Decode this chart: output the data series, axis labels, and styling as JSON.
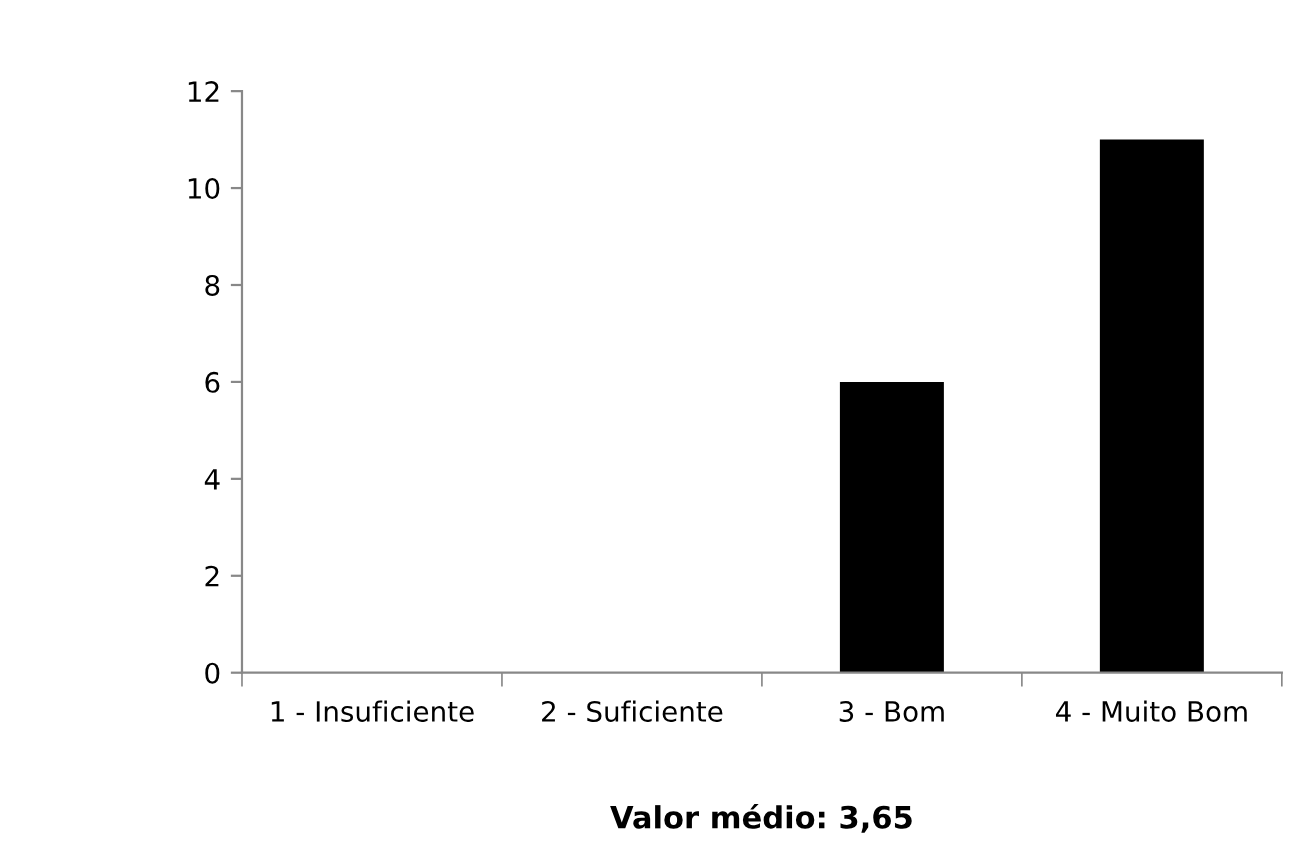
{
  "chart_data": {
    "type": "bar",
    "xlabel": "Valor médio: 3,65",
    "categories": [
      "1 - Insuficiente",
      "2 - Suficiente",
      "3 - Bom",
      "4 - Muito Bom"
    ],
    "values": [
      0,
      0,
      6,
      11
    ],
    "color": "#000000",
    "ylim": [
      0,
      12
    ],
    "yticks": [
      0,
      2,
      4,
      6,
      8,
      10,
      12
    ],
    "grid": false,
    "legend": false
  }
}
